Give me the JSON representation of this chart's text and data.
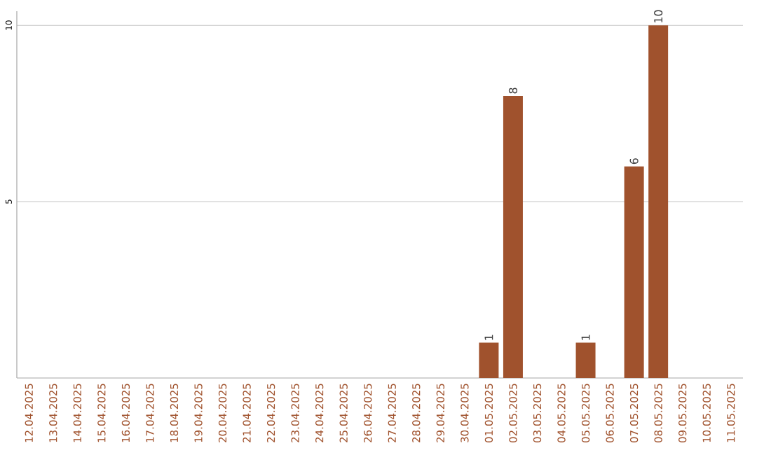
{
  "chart_data": {
    "type": "bar",
    "categories": [
      "12.04.2025",
      "13.04.2025",
      "14.04.2025",
      "15.04.2025",
      "16.04.2025",
      "17.04.2025",
      "18.04.2025",
      "19.04.2025",
      "20.04.2025",
      "21.04.2025",
      "22.04.2025",
      "23.04.2025",
      "24.04.2025",
      "25.04.2025",
      "26.04.2025",
      "27.04.2025",
      "28.04.2025",
      "29.04.2025",
      "30.04.2025",
      "01.05.2025",
      "02.05.2025",
      "03.05.2025",
      "04.05.2025",
      "05.05.2025",
      "06.05.2025",
      "07.05.2025",
      "08.05.2025",
      "09.05.2025",
      "10.05.2025",
      "11.05.2025"
    ],
    "values": [
      0,
      0,
      0,
      0,
      0,
      0,
      0,
      0,
      0,
      0,
      0,
      0,
      0,
      0,
      0,
      0,
      0,
      0,
      0,
      1,
      8,
      0,
      0,
      1,
      0,
      6,
      10,
      0,
      0,
      0
    ],
    "value_labels": [
      null,
      null,
      null,
      null,
      null,
      null,
      null,
      null,
      null,
      null,
      null,
      null,
      null,
      null,
      null,
      null,
      null,
      null,
      null,
      "1",
      "8",
      null,
      null,
      "1",
      null,
      "6",
      "10",
      null,
      null,
      null
    ],
    "color": "#a0522d",
    "ylim": [
      0,
      10.4
    ],
    "yticks": [
      5,
      10
    ],
    "grid": "y"
  }
}
